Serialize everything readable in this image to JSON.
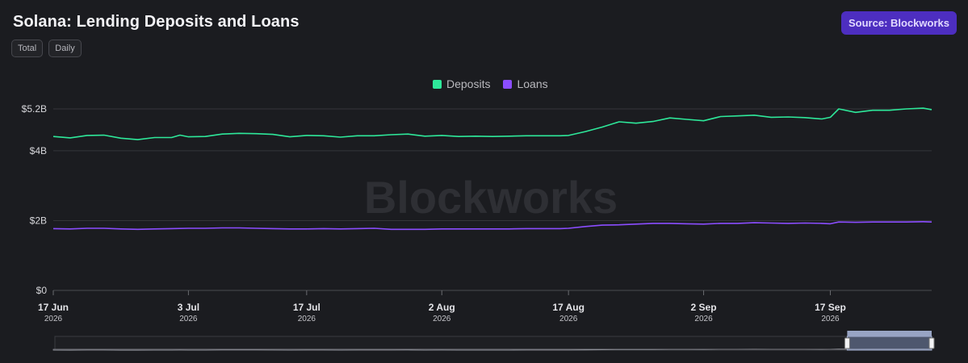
{
  "header": {
    "title": "Solana: Lending Deposits and Loans",
    "source_label": "Source: Blockworks",
    "view_toggles": [
      "Total",
      "Daily"
    ]
  },
  "watermark": "Blockworks",
  "colors": {
    "deposits": "#2ee89a",
    "loans": "#8b4dff",
    "source_button": "#4d2ec0",
    "background": "#1b1c20"
  },
  "chart_data": {
    "type": "line",
    "title": "Solana: Lending Deposits and Loans",
    "xlabel": "",
    "ylabel": "",
    "ylim": [
      0,
      5.2
    ],
    "y_unit": "billion USD",
    "yticks": [
      0,
      2,
      4,
      5.2
    ],
    "ytick_labels": [
      "$0",
      "$2B",
      "$4B",
      "$5.2B"
    ],
    "xlim": [
      "2026-06-17",
      "2026-09-29"
    ],
    "xticks": [
      {
        "date": "2026-06-17",
        "label": "17 Jun",
        "year": "2026"
      },
      {
        "date": "2026-07-03",
        "label": "3 Jul",
        "year": "2026"
      },
      {
        "date": "2026-07-17",
        "label": "17 Jul",
        "year": "2026"
      },
      {
        "date": "2026-08-02",
        "label": "2 Aug",
        "year": "2026"
      },
      {
        "date": "2026-08-17",
        "label": "17 Aug",
        "year": "2026"
      },
      {
        "date": "2026-09-02",
        "label": "2 Sep",
        "year": "2026"
      },
      {
        "date": "2026-09-17",
        "label": "17 Sep",
        "year": "2026"
      }
    ],
    "legend_placement": "top-center",
    "grid": "horizontal",
    "series": [
      {
        "name": "Deposits",
        "color": "#2ee89a",
        "points": [
          [
            "2026-06-17",
            4.41
          ],
          [
            "2026-06-19",
            4.37
          ],
          [
            "2026-06-21",
            4.44
          ],
          [
            "2026-06-23",
            4.45
          ],
          [
            "2026-06-25",
            4.36
          ],
          [
            "2026-06-27",
            4.32
          ],
          [
            "2026-06-29",
            4.38
          ],
          [
            "2026-07-01",
            4.38
          ],
          [
            "2026-07-02",
            4.45
          ],
          [
            "2026-07-03",
            4.4
          ],
          [
            "2026-07-05",
            4.41
          ],
          [
            "2026-07-07",
            4.48
          ],
          [
            "2026-07-09",
            4.5
          ],
          [
            "2026-07-11",
            4.49
          ],
          [
            "2026-07-13",
            4.47
          ],
          [
            "2026-07-15",
            4.4
          ],
          [
            "2026-07-17",
            4.44
          ],
          [
            "2026-07-19",
            4.43
          ],
          [
            "2026-07-21",
            4.39
          ],
          [
            "2026-07-23",
            4.43
          ],
          [
            "2026-07-25",
            4.43
          ],
          [
            "2026-07-27",
            4.46
          ],
          [
            "2026-07-29",
            4.48
          ],
          [
            "2026-07-31",
            4.42
          ],
          [
            "2026-08-02",
            4.44
          ],
          [
            "2026-08-04",
            4.41
          ],
          [
            "2026-08-06",
            4.42
          ],
          [
            "2026-08-08",
            4.41
          ],
          [
            "2026-08-10",
            4.42
          ],
          [
            "2026-08-12",
            4.43
          ],
          [
            "2026-08-14",
            4.43
          ],
          [
            "2026-08-16",
            4.43
          ],
          [
            "2026-08-17",
            4.44
          ],
          [
            "2026-08-19",
            4.55
          ],
          [
            "2026-08-21",
            4.68
          ],
          [
            "2026-08-23",
            4.83
          ],
          [
            "2026-08-25",
            4.79
          ],
          [
            "2026-08-27",
            4.84
          ],
          [
            "2026-08-29",
            4.94
          ],
          [
            "2026-08-31",
            4.9
          ],
          [
            "2026-09-02",
            4.86
          ],
          [
            "2026-09-04",
            4.98
          ],
          [
            "2026-09-06",
            5.0
          ],
          [
            "2026-09-08",
            5.02
          ],
          [
            "2026-09-10",
            4.96
          ],
          [
            "2026-09-12",
            4.97
          ],
          [
            "2026-09-14",
            4.95
          ],
          [
            "2026-09-16",
            4.91
          ],
          [
            "2026-09-17",
            4.96
          ],
          [
            "2026-09-18",
            5.2
          ],
          [
            "2026-09-20",
            5.1
          ],
          [
            "2026-09-22",
            5.16
          ],
          [
            "2026-09-24",
            5.16
          ],
          [
            "2026-09-26",
            5.2
          ],
          [
            "2026-09-28",
            5.22
          ],
          [
            "2026-09-29",
            5.18
          ]
        ]
      },
      {
        "name": "Loans",
        "color": "#8b4dff",
        "points": [
          [
            "2026-06-17",
            1.77
          ],
          [
            "2026-06-19",
            1.76
          ],
          [
            "2026-06-21",
            1.78
          ],
          [
            "2026-06-23",
            1.78
          ],
          [
            "2026-06-25",
            1.76
          ],
          [
            "2026-06-27",
            1.75
          ],
          [
            "2026-06-29",
            1.76
          ],
          [
            "2026-07-01",
            1.77
          ],
          [
            "2026-07-03",
            1.78
          ],
          [
            "2026-07-05",
            1.78
          ],
          [
            "2026-07-07",
            1.79
          ],
          [
            "2026-07-09",
            1.79
          ],
          [
            "2026-07-11",
            1.78
          ],
          [
            "2026-07-13",
            1.77
          ],
          [
            "2026-07-15",
            1.76
          ],
          [
            "2026-07-17",
            1.76
          ],
          [
            "2026-07-19",
            1.77
          ],
          [
            "2026-07-21",
            1.76
          ],
          [
            "2026-07-23",
            1.77
          ],
          [
            "2026-07-25",
            1.78
          ],
          [
            "2026-07-27",
            1.75
          ],
          [
            "2026-07-29",
            1.75
          ],
          [
            "2026-07-31",
            1.75
          ],
          [
            "2026-08-02",
            1.76
          ],
          [
            "2026-08-04",
            1.76
          ],
          [
            "2026-08-06",
            1.76
          ],
          [
            "2026-08-08",
            1.76
          ],
          [
            "2026-08-10",
            1.76
          ],
          [
            "2026-08-12",
            1.77
          ],
          [
            "2026-08-14",
            1.77
          ],
          [
            "2026-08-16",
            1.77
          ],
          [
            "2026-08-17",
            1.78
          ],
          [
            "2026-08-19",
            1.83
          ],
          [
            "2026-08-21",
            1.87
          ],
          [
            "2026-08-23",
            1.88
          ],
          [
            "2026-08-25",
            1.9
          ],
          [
            "2026-08-27",
            1.92
          ],
          [
            "2026-08-29",
            1.92
          ],
          [
            "2026-08-31",
            1.91
          ],
          [
            "2026-09-02",
            1.9
          ],
          [
            "2026-09-04",
            1.92
          ],
          [
            "2026-09-06",
            1.92
          ],
          [
            "2026-09-08",
            1.94
          ],
          [
            "2026-09-10",
            1.93
          ],
          [
            "2026-09-12",
            1.92
          ],
          [
            "2026-09-14",
            1.93
          ],
          [
            "2026-09-16",
            1.92
          ],
          [
            "2026-09-17",
            1.91
          ],
          [
            "2026-09-18",
            1.96
          ],
          [
            "2026-09-20",
            1.95
          ],
          [
            "2026-09-22",
            1.96
          ],
          [
            "2026-09-24",
            1.96
          ],
          [
            "2026-09-26",
            1.96
          ],
          [
            "2026-09-28",
            1.97
          ],
          [
            "2026-09-29",
            1.96
          ]
        ]
      }
    ],
    "navigator": {
      "type": "area",
      "window_start": "2026-09-19",
      "window_end": "2026-09-29"
    }
  }
}
